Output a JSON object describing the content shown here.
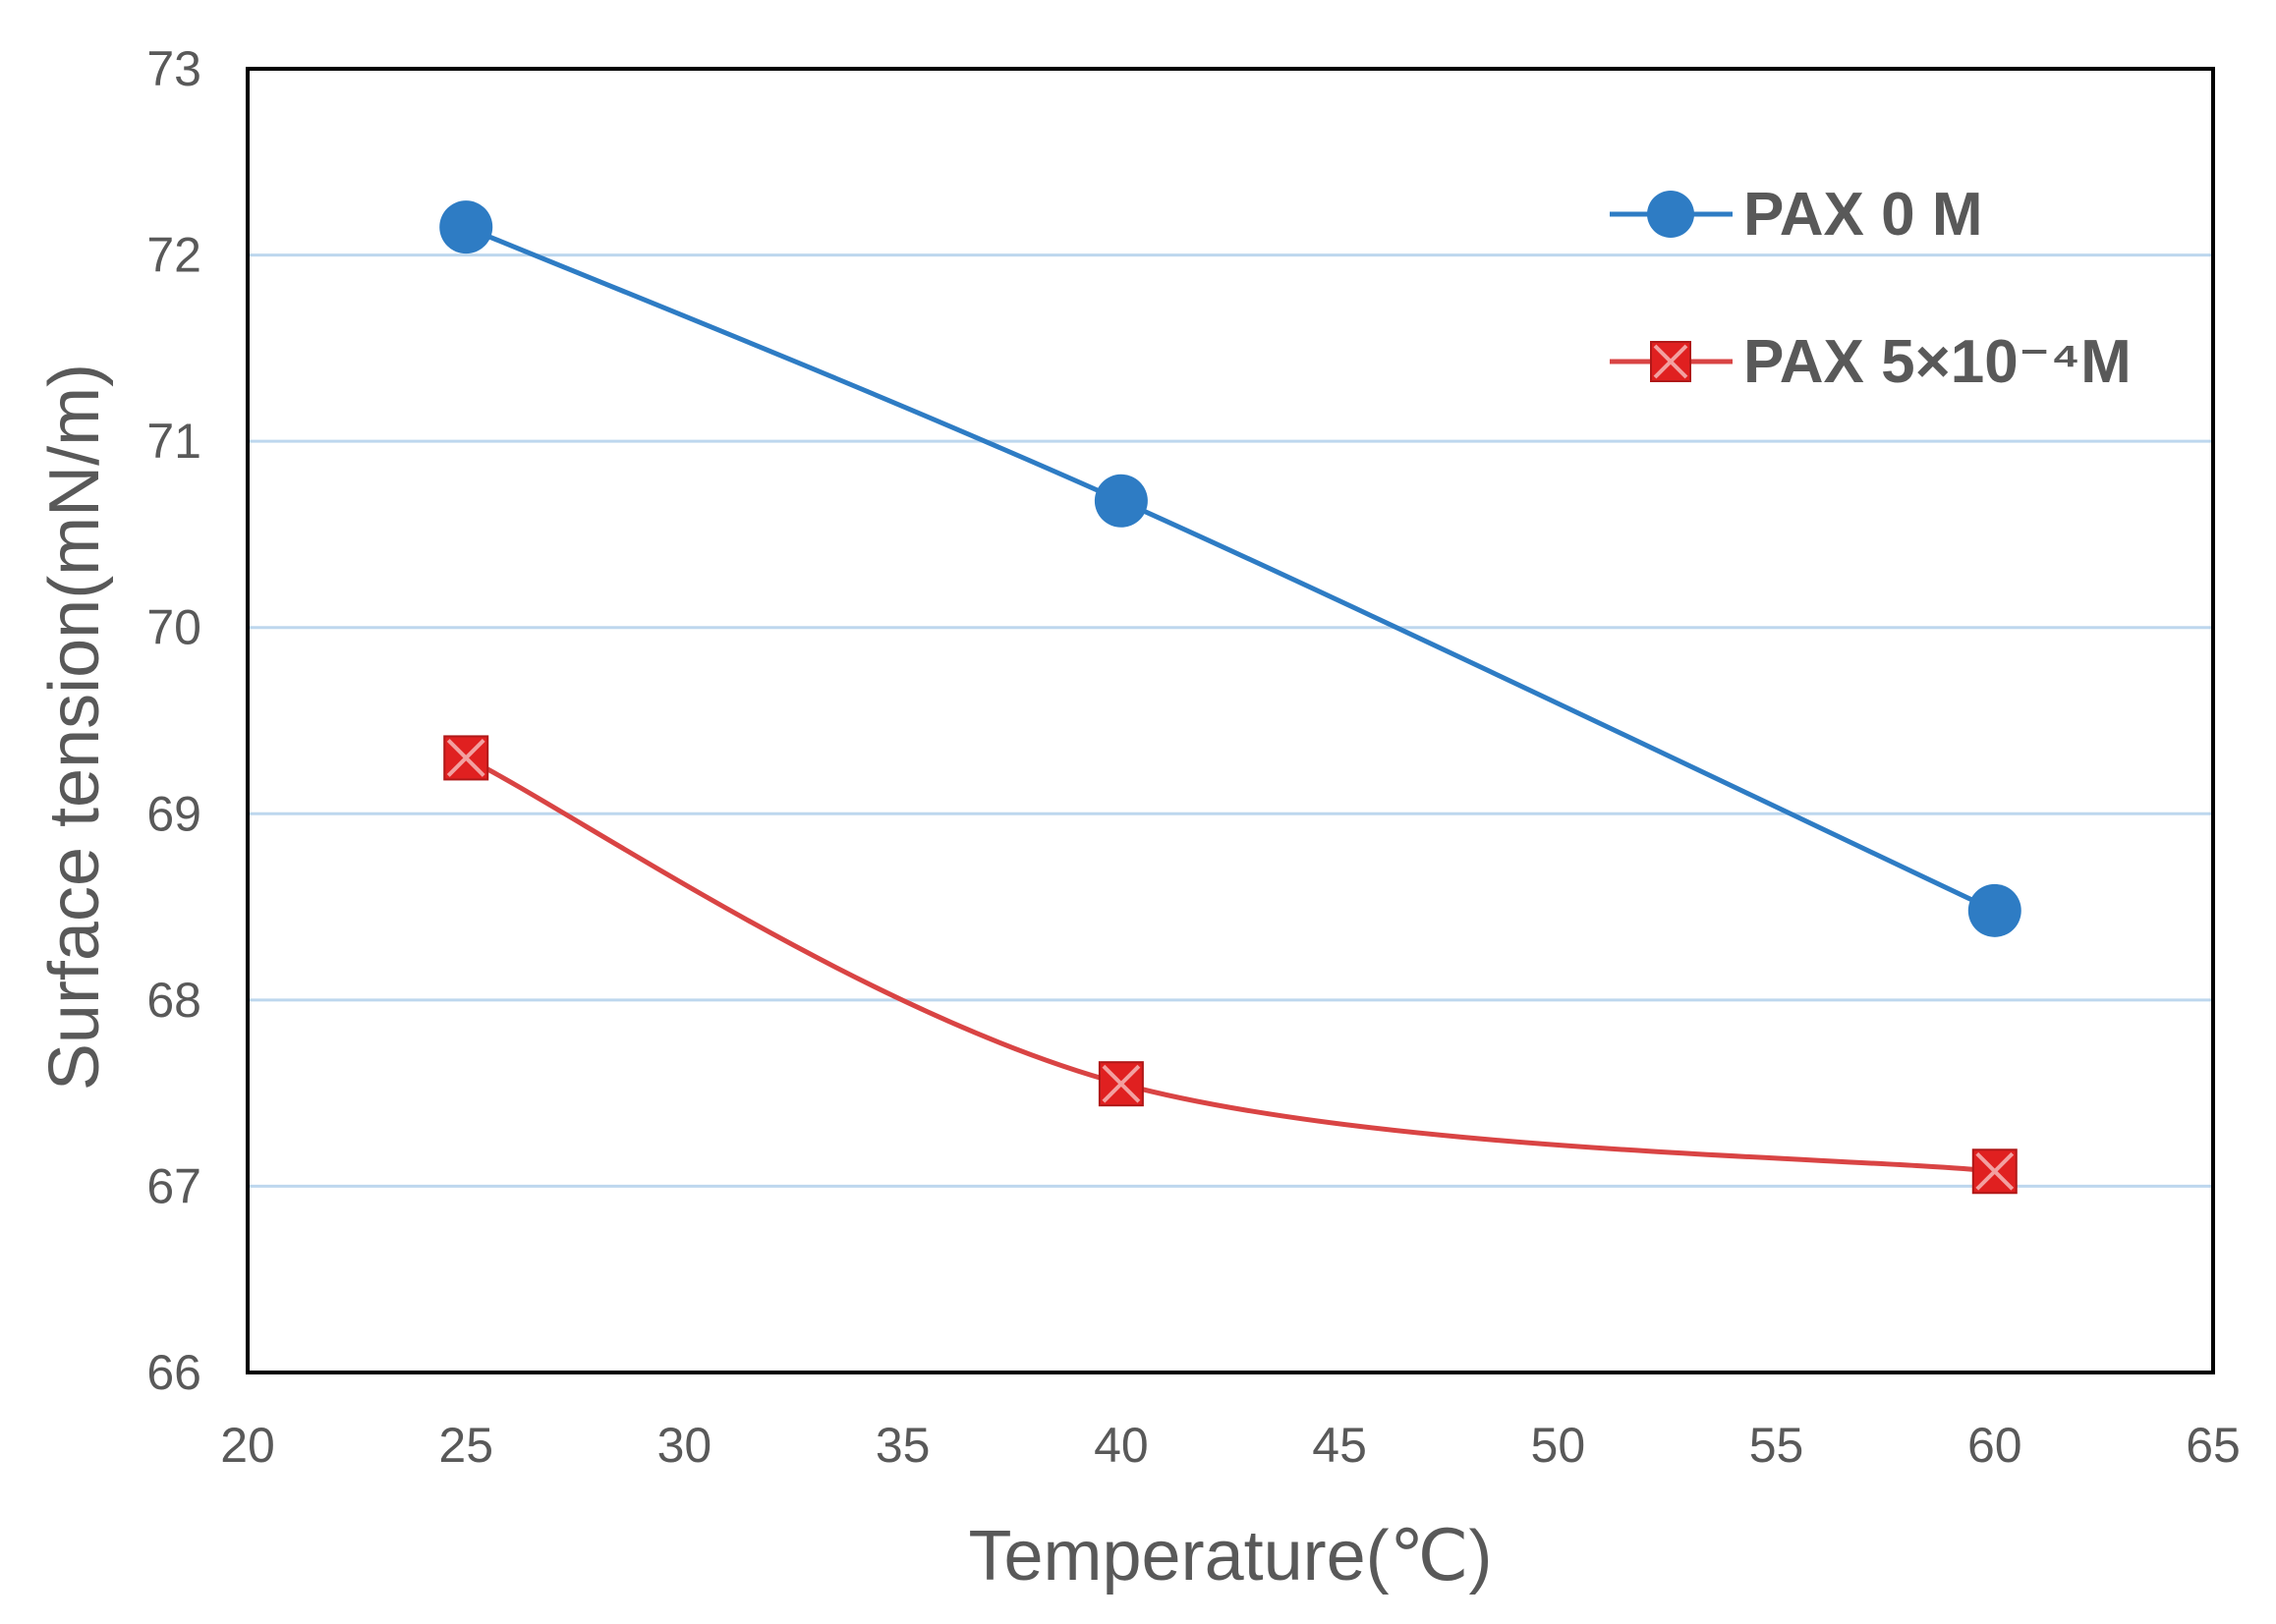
{
  "chart_data": {
    "type": "line",
    "title": "",
    "xlabel": "Temperature(℃)",
    "ylabel": "Surface tension(mN/m)",
    "xlim": [
      20,
      65
    ],
    "ylim": [
      66,
      73
    ],
    "xticks": [
      20,
      25,
      30,
      35,
      40,
      45,
      50,
      55,
      60,
      65
    ],
    "yticks": [
      66,
      67,
      68,
      69,
      70,
      71,
      72,
      73
    ],
    "grid": "horizontal",
    "legend_position": "top-right",
    "series": [
      {
        "name": "PAX 0 M",
        "marker": "circle",
        "color": "#2E7CC4",
        "x": [
          25,
          40,
          60
        ],
        "y": [
          72.15,
          70.68,
          68.48
        ]
      },
      {
        "name": "PAX 5×10⁻⁴M",
        "marker": "square-x",
        "color": "#E02020",
        "x": [
          25,
          40,
          60
        ],
        "y": [
          69.3,
          67.55,
          67.08
        ]
      }
    ]
  },
  "colors": {
    "gridline": "#BDD7EE",
    "axis": "#000000",
    "text": "#595959",
    "line_red": "#D94444"
  }
}
